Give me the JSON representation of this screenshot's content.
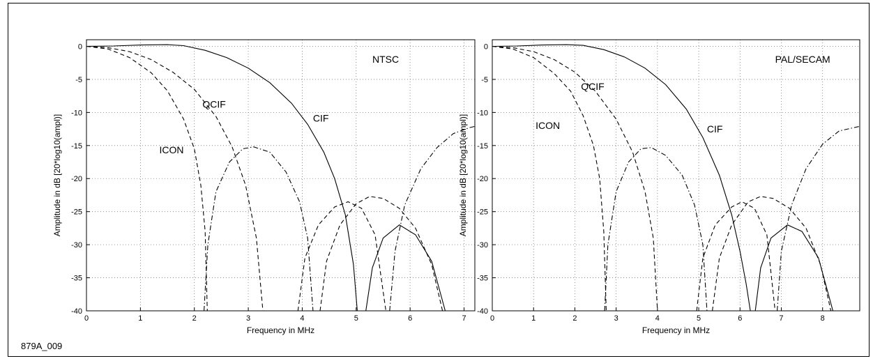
{
  "figure_id": "879A_009",
  "chart_data": [
    {
      "type": "line",
      "title": "NTSC",
      "xlabel": "Frequency in MHz",
      "ylabel": "Amplitude in dB [20*log10(ampl)]",
      "xlim": [
        0,
        7.2
      ],
      "ylim": [
        -40,
        1
      ],
      "xticks": [
        0,
        1,
        2,
        3,
        4,
        5,
        6,
        7
      ],
      "yticks": [
        0,
        -5,
        -10,
        -15,
        -20,
        -25,
        -30,
        -35,
        -40
      ],
      "grid": true,
      "series": [
        {
          "name": "CIF",
          "style": "solid",
          "segments": [
            [
              [
                0,
                0
              ],
              [
                0.5,
                0.05
              ],
              [
                1.0,
                0.2
              ],
              [
                1.5,
                0.25
              ],
              [
                1.8,
                0.1
              ],
              [
                2.2,
                -0.6
              ],
              [
                2.6,
                -1.7
              ],
              [
                3.0,
                -3.3
              ],
              [
                3.4,
                -5.5
              ],
              [
                3.8,
                -8.6
              ],
              [
                4.1,
                -11.8
              ],
              [
                4.4,
                -16
              ],
              [
                4.6,
                -20
              ],
              [
                4.8,
                -25.5
              ],
              [
                4.95,
                -33
              ],
              [
                5.02,
                -40
              ]
            ],
            [
              [
                5.18,
                -40
              ],
              [
                5.3,
                -33.5
              ],
              [
                5.5,
                -29
              ],
              [
                5.8,
                -27
              ],
              [
                6.1,
                -28.5
              ],
              [
                6.4,
                -32.5
              ],
              [
                6.65,
                -40
              ]
            ]
          ]
        },
        {
          "name": "QCIF",
          "style": "dashed",
          "segments": [
            [
              [
                0,
                0
              ],
              [
                0.4,
                -0.2
              ],
              [
                0.8,
                -0.8
              ],
              [
                1.2,
                -2.0
              ],
              [
                1.6,
                -3.9
              ],
              [
                2.0,
                -6.5
              ],
              [
                2.4,
                -10.6
              ],
              [
                2.7,
                -15.2
              ],
              [
                2.95,
                -21
              ],
              [
                3.15,
                -29
              ],
              [
                3.27,
                -40
              ]
            ],
            [
              [
                4.33,
                -40
              ],
              [
                4.45,
                -32.5
              ],
              [
                4.7,
                -27
              ],
              [
                5.0,
                -23.8
              ],
              [
                5.25,
                -22.7
              ],
              [
                5.5,
                -23
              ],
              [
                5.8,
                -24.5
              ],
              [
                6.1,
                -27.5
              ],
              [
                6.4,
                -33
              ],
              [
                6.6,
                -40
              ]
            ]
          ]
        },
        {
          "name": "ICON",
          "style": "dashed",
          "segments": [
            [
              [
                0,
                0
              ],
              [
                0.4,
                -0.4
              ],
              [
                0.8,
                -1.7
              ],
              [
                1.2,
                -4.0
              ],
              [
                1.5,
                -6.7
              ],
              [
                1.8,
                -11
              ],
              [
                2.0,
                -15.5
              ],
              [
                2.12,
                -21
              ],
              [
                2.2,
                -28
              ],
              [
                2.24,
                -40
              ]
            ],
            [
              [
                3.92,
                -40
              ],
              [
                4.05,
                -32
              ],
              [
                4.3,
                -27
              ],
              [
                4.6,
                -24.3
              ],
              [
                4.85,
                -23.5
              ],
              [
                5.1,
                -24.5
              ],
              [
                5.35,
                -28.5
              ],
              [
                5.55,
                -40
              ]
            ]
          ]
        },
        {
          "name": "",
          "style": "dashdot",
          "segments": [
            [
              [
                2.18,
                -40
              ],
              [
                2.25,
                -30
              ],
              [
                2.4,
                -22
              ],
              [
                2.65,
                -17.5
              ],
              [
                2.9,
                -15.5
              ],
              [
                3.1,
                -15.2
              ],
              [
                3.4,
                -16
              ],
              [
                3.7,
                -19
              ],
              [
                3.95,
                -23.5
              ],
              [
                4.1,
                -29
              ],
              [
                4.2,
                -40
              ]
            ],
            [
              [
                5.62,
                -40
              ],
              [
                5.72,
                -31
              ],
              [
                5.9,
                -24
              ],
              [
                6.2,
                -18.5
              ],
              [
                6.5,
                -15.3
              ],
              [
                6.8,
                -13.2
              ],
              [
                7.1,
                -12.3
              ],
              [
                7.2,
                -12.1
              ]
            ]
          ]
        }
      ],
      "annotations": [
        {
          "text": "NTSC",
          "x": 5.3,
          "y": -2.5
        },
        {
          "text": "QCIF",
          "x": 2.15,
          "y": -9.3
        },
        {
          "text": "ICON",
          "x": 1.35,
          "y": -16.2
        },
        {
          "text": "CIF",
          "x": 4.2,
          "y": -11.4
        }
      ]
    },
    {
      "type": "line",
      "title": "PAL/SECAM",
      "xlabel": "Frequency in MHz",
      "ylabel": "Amplitude in dB [20*log10(ampl)]",
      "xlim": [
        0,
        8.9
      ],
      "ylim": [
        -40,
        1
      ],
      "xticks": [
        0,
        1,
        2,
        3,
        4,
        5,
        6,
        7,
        8
      ],
      "yticks": [
        0,
        -5,
        -10,
        -15,
        -20,
        -25,
        -30,
        -35,
        -40
      ],
      "grid": true,
      "series": [
        {
          "name": "CIF",
          "style": "solid",
          "segments": [
            [
              [
                0,
                0
              ],
              [
                0.6,
                0.05
              ],
              [
                1.2,
                0.2
              ],
              [
                1.8,
                0.25
              ],
              [
                2.2,
                0.15
              ],
              [
                2.7,
                -0.5
              ],
              [
                3.2,
                -1.6
              ],
              [
                3.7,
                -3.3
              ],
              [
                4.2,
                -5.8
              ],
              [
                4.7,
                -9.5
              ],
              [
                5.1,
                -13.8
              ],
              [
                5.5,
                -19.5
              ],
              [
                5.8,
                -25.5
              ],
              [
                6.0,
                -31
              ],
              [
                6.15,
                -36
              ],
              [
                6.25,
                -40
              ]
            ],
            [
              [
                6.37,
                -40
              ],
              [
                6.5,
                -33.5
              ],
              [
                6.75,
                -29
              ],
              [
                7.15,
                -27
              ],
              [
                7.5,
                -28
              ],
              [
                7.9,
                -32
              ],
              [
                8.25,
                -40
              ]
            ]
          ]
        },
        {
          "name": "QCIF",
          "style": "dashed",
          "segments": [
            [
              [
                0,
                0
              ],
              [
                0.5,
                -0.2
              ],
              [
                1.0,
                -0.8
              ],
              [
                1.5,
                -2.0
              ],
              [
                2.0,
                -3.9
              ],
              [
                2.5,
                -6.8
              ],
              [
                3.0,
                -11
              ],
              [
                3.4,
                -16
              ],
              [
                3.7,
                -22
              ],
              [
                3.9,
                -29
              ],
              [
                4.0,
                -40
              ]
            ],
            [
              [
                5.33,
                -40
              ],
              [
                5.5,
                -32
              ],
              [
                5.8,
                -27
              ],
              [
                6.2,
                -23.5
              ],
              [
                6.5,
                -22.7
              ],
              [
                6.8,
                -23
              ],
              [
                7.2,
                -24.5
              ],
              [
                7.6,
                -27.5
              ],
              [
                7.95,
                -33
              ],
              [
                8.2,
                -40
              ]
            ]
          ]
        },
        {
          "name": "ICON",
          "style": "dashed",
          "segments": [
            [
              [
                0,
                0
              ],
              [
                0.5,
                -0.4
              ],
              [
                1.0,
                -1.7
              ],
              [
                1.5,
                -4.1
              ],
              [
                1.9,
                -6.8
              ],
              [
                2.2,
                -10.5
              ],
              [
                2.45,
                -15
              ],
              [
                2.6,
                -20
              ],
              [
                2.7,
                -28
              ],
              [
                2.76,
                -40
              ]
            ],
            [
              [
                4.95,
                -40
              ],
              [
                5.1,
                -32
              ],
              [
                5.4,
                -27
              ],
              [
                5.8,
                -24.3
              ],
              [
                6.05,
                -23.5
              ],
              [
                6.35,
                -24.5
              ],
              [
                6.65,
                -28.5
              ],
              [
                6.85,
                -40
              ]
            ]
          ]
        },
        {
          "name": "",
          "style": "dashdot",
          "segments": [
            [
              [
                2.72,
                -40
              ],
              [
                2.8,
                -30
              ],
              [
                3.0,
                -22
              ],
              [
                3.3,
                -17.5
              ],
              [
                3.6,
                -15.5
              ],
              [
                3.85,
                -15.3
              ],
              [
                4.2,
                -16.5
              ],
              [
                4.6,
                -19.5
              ],
              [
                4.9,
                -24
              ],
              [
                5.1,
                -30
              ],
              [
                5.2,
                -40
              ]
            ],
            [
              [
                6.9,
                -40
              ],
              [
                7.0,
                -31
              ],
              [
                7.25,
                -24
              ],
              [
                7.6,
                -18.5
              ],
              [
                8.0,
                -14.8
              ],
              [
                8.4,
                -12.8
              ],
              [
                8.9,
                -12.1
              ]
            ]
          ]
        }
      ],
      "annotations": [
        {
          "text": "PAL/SECAM",
          "x": 6.85,
          "y": -2.5
        },
        {
          "text": "QCIF",
          "x": 2.15,
          "y": -6.6
        },
        {
          "text": "ICON",
          "x": 1.05,
          "y": -12.5
        },
        {
          "text": "CIF",
          "x": 5.2,
          "y": -13
        }
      ]
    }
  ]
}
